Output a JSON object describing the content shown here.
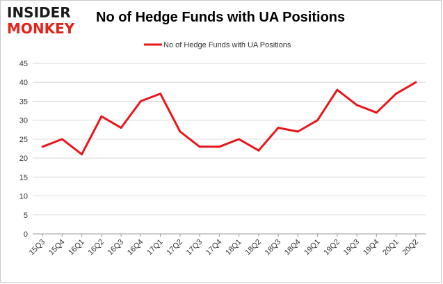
{
  "logo": {
    "top": "INSIDER",
    "bottom": "MONKEY"
  },
  "colors": {
    "series": "#e8161b",
    "grid": "#d9d9d9",
    "axis": "#999999"
  },
  "chart_data": {
    "type": "line",
    "title": "No of Hedge Funds with UA Positions",
    "xlabel": "",
    "ylabel": "",
    "ylim": [
      0,
      45
    ],
    "yticks": [
      0,
      5,
      10,
      15,
      20,
      25,
      30,
      35,
      40,
      45
    ],
    "grid": true,
    "legend_position": "top-center",
    "categories": [
      "15Q3",
      "15Q4",
      "16Q1",
      "16Q2",
      "16Q3",
      "16Q4",
      "17Q1",
      "17Q2",
      "17Q3",
      "17Q4",
      "18Q1",
      "18Q2",
      "18Q3",
      "18Q4",
      "19Q1",
      "19Q2",
      "19Q3",
      "19Q4",
      "20Q1",
      "20Q2"
    ],
    "series": [
      {
        "name": "No of Hedge Funds with UA Positions",
        "values": [
          23,
          25,
          21,
          31,
          28,
          35,
          37,
          27,
          23,
          23,
          25,
          22,
          28,
          27,
          30,
          38,
          34,
          32,
          37,
          40
        ]
      }
    ]
  }
}
